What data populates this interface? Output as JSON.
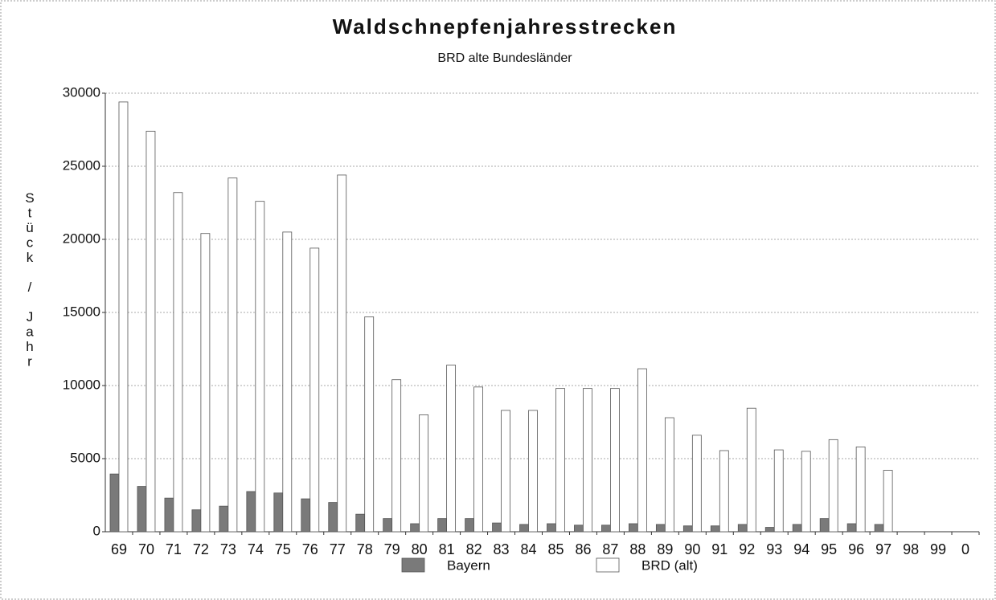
{
  "chart_data": {
    "type": "bar",
    "title": "Waldschnepfenjahresstrecken",
    "subtitle": "BRD alte Bundesländer",
    "y_label": "Stück / Jahr",
    "categories": [
      "69",
      "70",
      "71",
      "72",
      "73",
      "74",
      "75",
      "76",
      "77",
      "78",
      "79",
      "80",
      "81",
      "82",
      "83",
      "84",
      "85",
      "86",
      "87",
      "88",
      "89",
      "90",
      "91",
      "92",
      "93",
      "94",
      "95",
      "96",
      "97",
      "98",
      "99",
      "0"
    ],
    "series": [
      {
        "name": "Bayern",
        "color": "#7a7a7a",
        "values": [
          3950,
          3100,
          2300,
          1500,
          1750,
          2750,
          2650,
          2250,
          2000,
          1200,
          900,
          550,
          900,
          900,
          600,
          500,
          550,
          450,
          450,
          550,
          500,
          400,
          400,
          500,
          300,
          500,
          900,
          550,
          500,
          null,
          null,
          null
        ]
      },
      {
        "name": "BRD (alt)",
        "color": "#ffffff",
        "values": [
          29400,
          27400,
          23200,
          20400,
          24200,
          22600,
          20500,
          19400,
          24400,
          14700,
          10400,
          8000,
          11400,
          9900,
          8300,
          8300,
          9800,
          9800,
          9800,
          11150,
          7800,
          6600,
          5550,
          8450,
          5600,
          5500,
          6300,
          5800,
          4200,
          null,
          null,
          null
        ]
      }
    ],
    "ylim": [
      0,
      30000
    ],
    "yticks": [
      0,
      5000,
      10000,
      15000,
      20000,
      25000,
      30000
    ],
    "grid": true,
    "legend": "bottom"
  }
}
